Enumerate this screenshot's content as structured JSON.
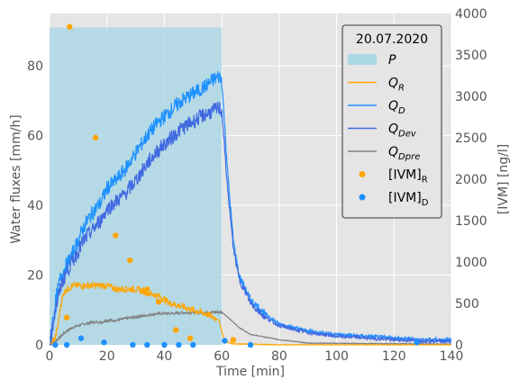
{
  "chart_data": {
    "type": "line",
    "title": "",
    "xlabel": "Time [min]",
    "ylabel": "Water fluxes [mm/h]",
    "y2label": "[IVM] [ng/l]",
    "xlim": [
      0,
      140
    ],
    "ylim": [
      0,
      95
    ],
    "y2lim": [
      0,
      4000
    ],
    "xticks": [
      0,
      20,
      40,
      60,
      80,
      100,
      120,
      140
    ],
    "yticks": [
      0,
      20,
      40,
      60,
      80
    ],
    "y2ticks": [
      0,
      500,
      1000,
      1500,
      2000,
      2500,
      3000,
      3500,
      4000
    ],
    "grid": true,
    "legend": {
      "title": "20.07.2020",
      "position": "top-right",
      "entries": [
        {
          "main": "P",
          "sub": ""
        },
        {
          "main": "Q",
          "sub": "R"
        },
        {
          "main": "Q",
          "sub": "D"
        },
        {
          "main": "Q",
          "sub": "Dev"
        },
        {
          "main": "Q",
          "sub": "Dpre"
        },
        {
          "main": "[IVM]",
          "sub": "R"
        },
        {
          "main": "[IVM]",
          "sub": "D"
        }
      ]
    },
    "colors": {
      "P": "#add8e6",
      "QR": "#ffa500",
      "QD": "#1e90ff",
      "QDev": "#4169e1",
      "QDpre": "#808080",
      "IVM_R": "#ffa500",
      "IVM_D": "#1e90ff"
    },
    "series": [
      {
        "key": "P",
        "kind": "area",
        "x": [
          0,
          60,
          60
        ],
        "y": [
          91,
          91,
          0
        ]
      },
      {
        "key": "QD",
        "kind": "line",
        "axis": "left",
        "x": [
          0,
          2,
          4,
          6,
          8,
          10,
          12,
          15,
          18,
          20,
          23,
          26,
          30,
          34,
          38,
          42,
          46,
          50,
          54,
          57,
          59,
          60,
          62,
          64,
          66,
          70,
          75,
          80,
          90,
          100,
          110,
          120,
          130,
          140
        ],
        "y": [
          0,
          12,
          20,
          23,
          26,
          30,
          34,
          38,
          41,
          45,
          47,
          50,
          55,
          60,
          64,
          67,
          70,
          72,
          74,
          76,
          77,
          76,
          50,
          30,
          20,
          13,
          9,
          6,
          4,
          3,
          2.5,
          2,
          1.5,
          1.5
        ]
      },
      {
        "key": "QDev",
        "kind": "line",
        "axis": "left",
        "x": [
          0,
          2,
          4,
          6,
          8,
          10,
          12,
          15,
          18,
          20,
          23,
          26,
          30,
          34,
          38,
          42,
          46,
          50,
          54,
          57,
          59,
          60,
          62,
          64,
          66,
          70,
          75,
          80,
          90,
          100,
          110,
          120,
          130,
          140
        ],
        "y": [
          0,
          10,
          17,
          21,
          24,
          27,
          30,
          33,
          36,
          39,
          41,
          43,
          47,
          52,
          56,
          59,
          62,
          64,
          66,
          67,
          68,
          67,
          45,
          28,
          19,
          12,
          8,
          5.5,
          3.5,
          2.5,
          2,
          1.5,
          1.2,
          1
        ]
      },
      {
        "key": "QR",
        "kind": "line",
        "axis": "left",
        "x": [
          0,
          2,
          3,
          4,
          5,
          6,
          8,
          10,
          12,
          15,
          18,
          20,
          23,
          26,
          30,
          34,
          38,
          42,
          46,
          50,
          54,
          57,
          59,
          60,
          61,
          64,
          70,
          80,
          140
        ],
        "y": [
          0,
          2,
          6,
          12,
          15,
          16,
          17,
          17,
          17,
          17,
          17,
          17,
          16,
          16,
          16,
          15,
          14,
          12,
          11,
          10,
          9,
          8,
          7,
          4,
          1,
          0.3,
          0.2,
          0,
          0
        ]
      },
      {
        "key": "QDpre",
        "kind": "line",
        "axis": "left",
        "x": [
          0,
          2,
          4,
          6,
          8,
          10,
          12,
          15,
          18,
          20,
          23,
          26,
          30,
          34,
          38,
          42,
          46,
          50,
          54,
          58,
          60,
          62,
          66,
          70,
          80,
          90,
          140
        ],
        "y": [
          0,
          1,
          2.5,
          4,
          5,
          5.5,
          6,
          6.5,
          6.5,
          7,
          7,
          7.5,
          8,
          8.5,
          9,
          9,
          9.2,
          9.3,
          9.3,
          9.4,
          9.4,
          8,
          5,
          3,
          1.5,
          0.5,
          0.2
        ]
      },
      {
        "key": "IVM_R",
        "kind": "scatter",
        "axis": "right",
        "x": [
          6,
          7,
          16,
          23,
          28,
          34,
          38,
          44,
          49,
          64
        ],
        "y": [
          330,
          3840,
          2500,
          1320,
          1020,
          670,
          520,
          180,
          80,
          60
        ]
      },
      {
        "key": "IVM_D",
        "kind": "scatter",
        "axis": "right",
        "x": [
          2,
          6,
          11,
          19,
          29,
          34,
          40,
          45,
          50,
          61,
          70,
          128
        ],
        "y": [
          0,
          0,
          80,
          30,
          0,
          0,
          0,
          0,
          0,
          50,
          0,
          30
        ]
      }
    ]
  }
}
